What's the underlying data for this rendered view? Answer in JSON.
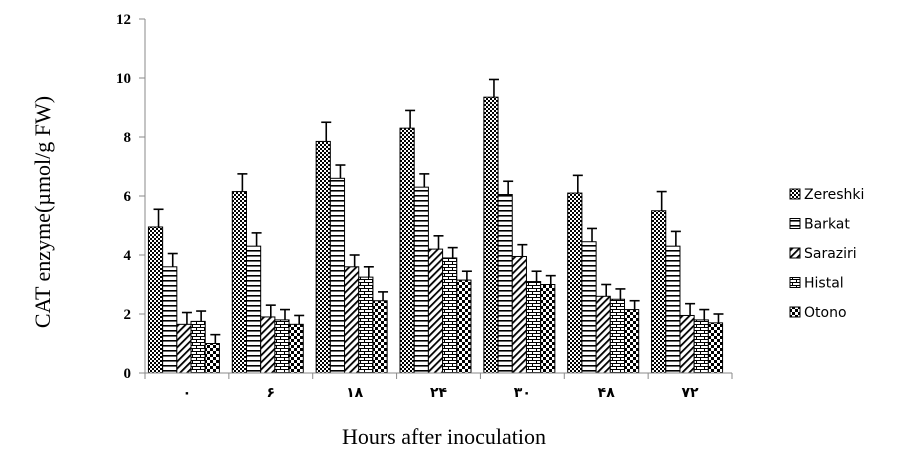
{
  "chart_data": {
    "type": "bar",
    "title": "",
    "xlabel": "Hours after inoculation",
    "ylabel": "CAT enzyme(µmol/g FW)",
    "categories": [
      "۰",
      "۶",
      "۱۸",
      "۲۴",
      "۳۰",
      "۴۸",
      "۷۲"
    ],
    "ylim": [
      0,
      12
    ],
    "yticks": [
      0,
      2,
      4,
      6,
      8,
      10,
      12
    ],
    "grid": false,
    "legend_position": "right",
    "series": [
      {
        "name": "Zereshki",
        "pattern": "dots",
        "values": [
          4.95,
          6.15,
          7.85,
          8.3,
          9.35,
          6.1,
          5.5
        ],
        "errors": [
          0.6,
          0.6,
          0.65,
          0.6,
          0.6,
          0.6,
          0.65
        ]
      },
      {
        "name": "Barkat",
        "pattern": "hlines",
        "values": [
          3.6,
          4.3,
          6.6,
          6.3,
          6.05,
          4.45,
          4.3
        ],
        "errors": [
          0.45,
          0.45,
          0.45,
          0.45,
          0.45,
          0.45,
          0.5
        ]
      },
      {
        "name": "Saraziri",
        "pattern": "diagonal",
        "values": [
          1.65,
          1.9,
          3.6,
          4.2,
          3.95,
          2.6,
          1.95
        ],
        "errors": [
          0.4,
          0.4,
          0.4,
          0.45,
          0.4,
          0.4,
          0.4
        ]
      },
      {
        "name": "Histal",
        "pattern": "brick",
        "values": [
          1.75,
          1.8,
          3.25,
          3.9,
          3.1,
          2.5,
          1.8
        ],
        "errors": [
          0.35,
          0.35,
          0.35,
          0.35,
          0.35,
          0.35,
          0.35
        ]
      },
      {
        "name": "Otono",
        "pattern": "checker",
        "values": [
          1.0,
          1.65,
          2.45,
          3.15,
          3.0,
          2.15,
          1.7
        ],
        "errors": [
          0.3,
          0.3,
          0.3,
          0.3,
          0.3,
          0.3,
          0.3
        ]
      }
    ]
  }
}
